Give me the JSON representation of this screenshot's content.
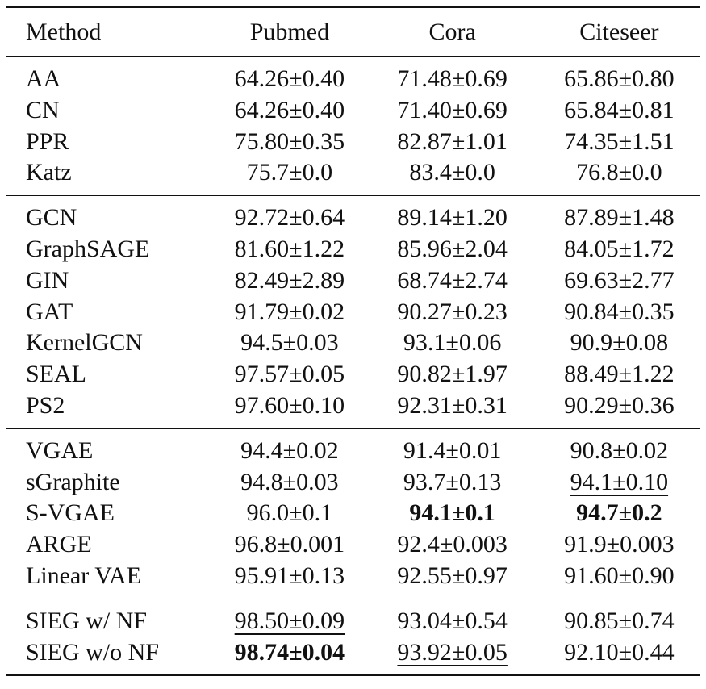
{
  "header": {
    "method": "Method",
    "col1": "Pubmed",
    "col2": "Cora",
    "col3": "Citeseer"
  },
  "groups": [
    {
      "rows": [
        {
          "method": "AA",
          "pubmed": "64.26±0.40",
          "cora": "71.48±0.69",
          "citeseer": "65.86±0.80"
        },
        {
          "method": "CN",
          "pubmed": "64.26±0.40",
          "cora": "71.40±0.69",
          "citeseer": "65.84±0.81"
        },
        {
          "method": "PPR",
          "pubmed": "75.80±0.35",
          "cora": "82.87±1.01",
          "citeseer": "74.35±1.51"
        },
        {
          "method": "Katz",
          "pubmed": "75.7±0.0",
          "cora": "83.4±0.0",
          "citeseer": "76.8±0.0"
        }
      ]
    },
    {
      "rows": [
        {
          "method": "GCN",
          "pubmed": "92.72±0.64",
          "cora": "89.14±1.20",
          "citeseer": "87.89±1.48"
        },
        {
          "method": "GraphSAGE",
          "pubmed": "81.60±1.22",
          "cora": "85.96±2.04",
          "citeseer": "84.05±1.72"
        },
        {
          "method": "GIN",
          "pubmed": "82.49±2.89",
          "cora": "68.74±2.74",
          "citeseer": "69.63±2.77"
        },
        {
          "method": "GAT",
          "pubmed": "91.79±0.02",
          "cora": "90.27±0.23",
          "citeseer": "90.84±0.35"
        },
        {
          "method": "KernelGCN",
          "pubmed": "94.5±0.03",
          "cora": "93.1±0.06",
          "citeseer": "90.9±0.08"
        },
        {
          "method": "SEAL",
          "pubmed": "97.57±0.05",
          "cora": "90.82±1.97",
          "citeseer": "88.49±1.22"
        },
        {
          "method": "PS2",
          "pubmed": "97.60±0.10",
          "cora": "92.31±0.31",
          "citeseer": "90.29±0.36"
        }
      ]
    },
    {
      "rows": [
        {
          "method": "VGAE",
          "pubmed": "94.4±0.02",
          "cora": "91.4±0.01",
          "citeseer": "90.8±0.02"
        },
        {
          "method": "sGraphite",
          "pubmed": "94.8±0.03",
          "cora": "93.7±0.13",
          "citeseer": "94.1±0.10"
        },
        {
          "method": "S-VGAE",
          "pubmed": "96.0±0.1",
          "cora": "94.1±0.1",
          "citeseer": "94.7±0.2"
        },
        {
          "method": "ARGE",
          "pubmed": "96.8±0.001",
          "cora": "92.4±0.003",
          "citeseer": "91.9±0.003"
        },
        {
          "method": "Linear VAE",
          "pubmed": "95.91±0.13",
          "cora": "92.55±0.97",
          "citeseer": "91.60±0.90"
        }
      ]
    },
    {
      "rows": [
        {
          "method": "SIEG w/ NF",
          "pubmed": "98.50±0.09",
          "cora": "93.04±0.54",
          "citeseer": "90.85±0.74"
        },
        {
          "method": "SIEG w/o NF",
          "pubmed": "98.74±0.04",
          "cora": "93.92±0.05",
          "citeseer": "92.10±0.44"
        }
      ]
    }
  ]
}
